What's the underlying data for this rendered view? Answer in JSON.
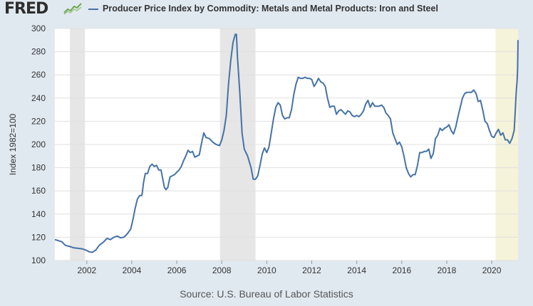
{
  "header": {
    "logo_text": "FRED",
    "series_title": "Producer Price Index by Commodity: Metals and Metal Products: Iron and Steel",
    "line_color": "#4572a7"
  },
  "source": "Source: U.S. Bureau of Labor Statistics",
  "chart_data": {
    "type": "line",
    "title": "Producer Price Index by Commodity: Metals and Metal Products: Iron and Steel",
    "xlabel": "",
    "ylabel": "Index 1982=100",
    "xlim": [
      2000.58,
      2021.17
    ],
    "ylim": [
      100,
      300
    ],
    "yticks": [
      100,
      120,
      140,
      160,
      180,
      200,
      220,
      240,
      260,
      280,
      300
    ],
    "xticks": [
      2002,
      2004,
      2006,
      2008,
      2010,
      2012,
      2014,
      2016,
      2018,
      2020
    ],
    "grid": true,
    "legend": "top-left",
    "recessions": [
      [
        2001.25,
        2001.92
      ],
      [
        2007.92,
        2009.5
      ]
    ],
    "highlights": [
      [
        2020.17,
        2021.17
      ]
    ],
    "series": [
      {
        "name": "Producer Price Index by Commodity: Metals and Metal Products: Iron and Steel",
        "color": "#4572a7",
        "points": [
          [
            2000.58,
            118
          ],
          [
            2000.75,
            117
          ],
          [
            2000.9,
            116
          ],
          [
            2001.05,
            113
          ],
          [
            2001.25,
            112
          ],
          [
            2001.4,
            111
          ],
          [
            2001.6,
            110.5
          ],
          [
            2001.8,
            110
          ],
          [
            2001.95,
            109
          ],
          [
            2002.1,
            107.5
          ],
          [
            2002.25,
            107
          ],
          [
            2002.4,
            109
          ],
          [
            2002.55,
            113
          ],
          [
            2002.75,
            116
          ],
          [
            2002.9,
            119
          ],
          [
            2003.05,
            118
          ],
          [
            2003.2,
            120
          ],
          [
            2003.35,
            121
          ],
          [
            2003.5,
            119.5
          ],
          [
            2003.65,
            120
          ],
          [
            2003.8,
            123
          ],
          [
            2003.95,
            127
          ],
          [
            2004.05,
            135
          ],
          [
            2004.15,
            145
          ],
          [
            2004.25,
            153
          ],
          [
            2004.35,
            156
          ],
          [
            2004.45,
            156
          ],
          [
            2004.52,
            167
          ],
          [
            2004.6,
            175
          ],
          [
            2004.7,
            175
          ],
          [
            2004.8,
            181
          ],
          [
            2004.9,
            183
          ],
          [
            2005.0,
            181
          ],
          [
            2005.1,
            182
          ],
          [
            2005.2,
            178
          ],
          [
            2005.3,
            178
          ],
          [
            2005.38,
            170
          ],
          [
            2005.45,
            163
          ],
          [
            2005.52,
            161
          ],
          [
            2005.6,
            163
          ],
          [
            2005.7,
            172
          ],
          [
            2005.8,
            173
          ],
          [
            2005.9,
            174
          ],
          [
            2006.0,
            176
          ],
          [
            2006.1,
            178
          ],
          [
            2006.2,
            181
          ],
          [
            2006.3,
            186
          ],
          [
            2006.4,
            190
          ],
          [
            2006.5,
            195
          ],
          [
            2006.6,
            193
          ],
          [
            2006.7,
            194
          ],
          [
            2006.8,
            189
          ],
          [
            2006.9,
            190
          ],
          [
            2007.0,
            191
          ],
          [
            2007.1,
            201
          ],
          [
            2007.2,
            210
          ],
          [
            2007.3,
            206
          ],
          [
            2007.45,
            205
          ],
          [
            2007.6,
            202
          ],
          [
            2007.75,
            200
          ],
          [
            2007.9,
            199
          ],
          [
            2008.0,
            204
          ],
          [
            2008.1,
            212
          ],
          [
            2008.2,
            225
          ],
          [
            2008.3,
            252
          ],
          [
            2008.4,
            273
          ],
          [
            2008.5,
            288
          ],
          [
            2008.6,
            295
          ],
          [
            2008.65,
            295
          ],
          [
            2008.7,
            275
          ],
          [
            2008.8,
            245
          ],
          [
            2008.9,
            210
          ],
          [
            2009.0,
            196
          ],
          [
            2009.15,
            190
          ],
          [
            2009.3,
            180
          ],
          [
            2009.4,
            170
          ],
          [
            2009.5,
            170
          ],
          [
            2009.6,
            173
          ],
          [
            2009.7,
            182
          ],
          [
            2009.8,
            192
          ],
          [
            2009.9,
            197
          ],
          [
            2010.0,
            193
          ],
          [
            2010.1,
            198
          ],
          [
            2010.2,
            210
          ],
          [
            2010.3,
            222
          ],
          [
            2010.4,
            232
          ],
          [
            2010.5,
            236
          ],
          [
            2010.6,
            234
          ],
          [
            2010.7,
            225
          ],
          [
            2010.8,
            222
          ],
          [
            2010.9,
            223
          ],
          [
            2011.0,
            223
          ],
          [
            2011.1,
            230
          ],
          [
            2011.2,
            243
          ],
          [
            2011.3,
            252
          ],
          [
            2011.4,
            258
          ],
          [
            2011.5,
            257
          ],
          [
            2011.6,
            257
          ],
          [
            2011.7,
            258
          ],
          [
            2011.8,
            257
          ],
          [
            2011.9,
            257
          ],
          [
            2012.0,
            256
          ],
          [
            2012.1,
            250
          ],
          [
            2012.2,
            253
          ],
          [
            2012.3,
            257
          ],
          [
            2012.4,
            254
          ],
          [
            2012.5,
            253
          ],
          [
            2012.6,
            250
          ],
          [
            2012.7,
            240
          ],
          [
            2012.8,
            232
          ],
          [
            2012.9,
            233
          ],
          [
            2013.0,
            233
          ],
          [
            2013.1,
            226
          ],
          [
            2013.2,
            229
          ],
          [
            2013.3,
            230
          ],
          [
            2013.4,
            228
          ],
          [
            2013.5,
            226
          ],
          [
            2013.6,
            229
          ],
          [
            2013.7,
            228
          ],
          [
            2013.8,
            225
          ],
          [
            2013.9,
            224
          ],
          [
            2014.0,
            225
          ],
          [
            2014.1,
            224
          ],
          [
            2014.2,
            226
          ],
          [
            2014.3,
            229
          ],
          [
            2014.4,
            235
          ],
          [
            2014.5,
            238
          ],
          [
            2014.6,
            232
          ],
          [
            2014.7,
            236
          ],
          [
            2014.8,
            233
          ],
          [
            2014.9,
            233
          ],
          [
            2015.0,
            233
          ],
          [
            2015.1,
            234
          ],
          [
            2015.2,
            232
          ],
          [
            2015.3,
            227
          ],
          [
            2015.4,
            225
          ],
          [
            2015.5,
            222
          ],
          [
            2015.6,
            210
          ],
          [
            2015.7,
            205
          ],
          [
            2015.8,
            200
          ],
          [
            2015.9,
            202
          ],
          [
            2016.0,
            198
          ],
          [
            2016.1,
            190
          ],
          [
            2016.2,
            180
          ],
          [
            2016.3,
            175
          ],
          [
            2016.4,
            172
          ],
          [
            2016.5,
            174
          ],
          [
            2016.6,
            174
          ],
          [
            2016.7,
            182
          ],
          [
            2016.8,
            193
          ],
          [
            2016.9,
            193
          ],
          [
            2017.0,
            194
          ],
          [
            2017.1,
            194
          ],
          [
            2017.2,
            196
          ],
          [
            2017.3,
            188
          ],
          [
            2017.4,
            192
          ],
          [
            2017.5,
            205
          ],
          [
            2017.6,
            208
          ],
          [
            2017.7,
            214
          ],
          [
            2017.8,
            212
          ],
          [
            2017.9,
            214
          ],
          [
            2018.0,
            215
          ],
          [
            2018.1,
            217
          ],
          [
            2018.2,
            212
          ],
          [
            2018.3,
            209
          ],
          [
            2018.4,
            215
          ],
          [
            2018.5,
            224
          ],
          [
            2018.6,
            232
          ],
          [
            2018.7,
            240
          ],
          [
            2018.8,
            244
          ],
          [
            2018.9,
            245
          ],
          [
            2019.0,
            245
          ],
          [
            2019.1,
            245
          ],
          [
            2019.2,
            247
          ],
          [
            2019.3,
            244
          ],
          [
            2019.4,
            237
          ],
          [
            2019.5,
            238
          ],
          [
            2019.6,
            230
          ],
          [
            2019.7,
            220
          ],
          [
            2019.8,
            218
          ],
          [
            2019.9,
            212
          ],
          [
            2020.0,
            207
          ],
          [
            2020.1,
            206
          ],
          [
            2020.2,
            210
          ],
          [
            2020.3,
            213
          ],
          [
            2020.4,
            208
          ],
          [
            2020.5,
            210
          ],
          [
            2020.6,
            204
          ],
          [
            2020.7,
            204
          ],
          [
            2020.8,
            201
          ],
          [
            2020.9,
            205
          ],
          [
            2021.0,
            212
          ],
          [
            2021.05,
            230
          ],
          [
            2021.08,
            242
          ],
          [
            2021.1,
            248
          ],
          [
            2021.13,
            255
          ],
          [
            2021.15,
            265
          ],
          [
            2021.17,
            290
          ]
        ]
      }
    ]
  }
}
